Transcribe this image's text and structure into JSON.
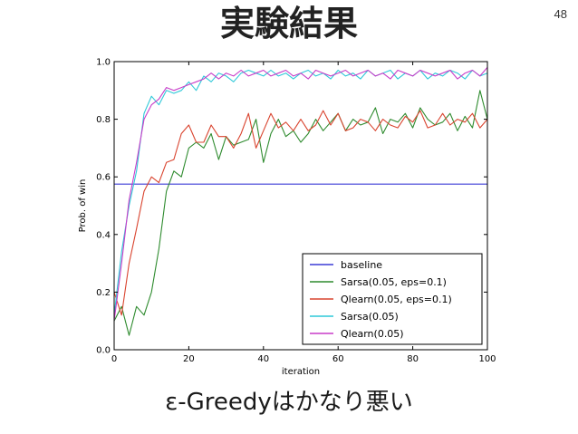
{
  "slide": {
    "title": "実験結果",
    "page_number": "48",
    "caption": "ε-Greedyはかなり悪い"
  },
  "chart_data": {
    "type": "line",
    "title": "",
    "xlabel": "iteration",
    "ylabel": "Prob. of win",
    "xlim": [
      0,
      100
    ],
    "ylim": [
      0.0,
      1.0
    ],
    "xticks": [
      "0",
      "20",
      "40",
      "60",
      "80",
      "100"
    ],
    "yticks": [
      "0.0",
      "0.2",
      "0.4",
      "0.6",
      "0.8",
      "1.0"
    ],
    "grid": false,
    "legend_position": "lower-right",
    "series": [
      {
        "name": "baseline",
        "color": "#3b3bd6",
        "x": [
          0,
          100
        ],
        "y": [
          0.575,
          0.575
        ]
      },
      {
        "name": "Sarsa(0.05, eps=0.1)",
        "color": "#2e8b2e",
        "x": [
          0,
          2,
          4,
          6,
          8,
          10,
          12,
          14,
          16,
          18,
          20,
          22,
          24,
          26,
          28,
          30,
          32,
          34,
          36,
          38,
          40,
          42,
          44,
          46,
          48,
          50,
          52,
          54,
          56,
          58,
          60,
          62,
          64,
          66,
          68,
          70,
          72,
          74,
          76,
          78,
          80,
          82,
          84,
          86,
          88,
          90,
          92,
          94,
          96,
          98,
          100
        ],
        "y": [
          0.1,
          0.15,
          0.05,
          0.15,
          0.12,
          0.2,
          0.35,
          0.55,
          0.62,
          0.6,
          0.7,
          0.72,
          0.7,
          0.75,
          0.66,
          0.74,
          0.71,
          0.72,
          0.73,
          0.8,
          0.65,
          0.75,
          0.8,
          0.74,
          0.76,
          0.72,
          0.75,
          0.8,
          0.76,
          0.79,
          0.82,
          0.76,
          0.8,
          0.78,
          0.79,
          0.84,
          0.75,
          0.8,
          0.79,
          0.82,
          0.77,
          0.84,
          0.8,
          0.78,
          0.79,
          0.82,
          0.76,
          0.81,
          0.77,
          0.9,
          0.8
        ]
      },
      {
        "name": "Qlearn(0.05, eps=0.1)",
        "color": "#d9442f",
        "x": [
          0,
          2,
          4,
          6,
          8,
          10,
          12,
          14,
          16,
          18,
          20,
          22,
          24,
          26,
          28,
          30,
          32,
          34,
          36,
          38,
          40,
          42,
          44,
          46,
          48,
          50,
          52,
          54,
          56,
          58,
          60,
          62,
          64,
          66,
          68,
          70,
          72,
          74,
          76,
          78,
          80,
          82,
          84,
          86,
          88,
          90,
          92,
          94,
          96,
          98,
          100
        ],
        "y": [
          0.2,
          0.12,
          0.3,
          0.42,
          0.55,
          0.6,
          0.58,
          0.65,
          0.66,
          0.75,
          0.78,
          0.72,
          0.72,
          0.78,
          0.74,
          0.74,
          0.7,
          0.75,
          0.82,
          0.7,
          0.76,
          0.82,
          0.77,
          0.79,
          0.76,
          0.8,
          0.76,
          0.78,
          0.83,
          0.78,
          0.82,
          0.76,
          0.77,
          0.8,
          0.79,
          0.76,
          0.8,
          0.78,
          0.77,
          0.81,
          0.79,
          0.83,
          0.77,
          0.78,
          0.82,
          0.78,
          0.8,
          0.79,
          0.82,
          0.77,
          0.8
        ]
      },
      {
        "name": "Sarsa(0.05)",
        "color": "#2ec8d8",
        "x": [
          0,
          2,
          4,
          6,
          8,
          10,
          12,
          14,
          16,
          18,
          20,
          22,
          24,
          26,
          28,
          30,
          32,
          34,
          36,
          38,
          40,
          42,
          44,
          46,
          48,
          50,
          52,
          54,
          56,
          58,
          60,
          62,
          64,
          66,
          68,
          70,
          72,
          74,
          76,
          78,
          80,
          82,
          84,
          86,
          88,
          90,
          92,
          94,
          96,
          98,
          100
        ],
        "y": [
          0.12,
          0.34,
          0.5,
          0.62,
          0.82,
          0.88,
          0.85,
          0.9,
          0.89,
          0.9,
          0.93,
          0.9,
          0.95,
          0.93,
          0.96,
          0.95,
          0.93,
          0.96,
          0.97,
          0.96,
          0.95,
          0.97,
          0.95,
          0.96,
          0.94,
          0.96,
          0.97,
          0.95,
          0.96,
          0.94,
          0.97,
          0.95,
          0.96,
          0.94,
          0.97,
          0.95,
          0.96,
          0.97,
          0.94,
          0.96,
          0.95,
          0.97,
          0.94,
          0.96,
          0.95,
          0.97,
          0.96,
          0.94,
          0.97,
          0.95,
          0.96
        ]
      },
      {
        "name": "Qlearn(0.05)",
        "color": "#c83cc8",
        "x": [
          0,
          2,
          4,
          6,
          8,
          10,
          12,
          14,
          16,
          18,
          20,
          22,
          24,
          26,
          28,
          30,
          32,
          34,
          36,
          38,
          40,
          42,
          44,
          46,
          48,
          50,
          52,
          54,
          56,
          58,
          60,
          62,
          64,
          66,
          68,
          70,
          72,
          74,
          76,
          78,
          80,
          82,
          84,
          86,
          88,
          90,
          92,
          94,
          96,
          98,
          100
        ],
        "y": [
          0.1,
          0.3,
          0.52,
          0.65,
          0.8,
          0.85,
          0.87,
          0.91,
          0.9,
          0.91,
          0.92,
          0.93,
          0.94,
          0.96,
          0.94,
          0.96,
          0.95,
          0.97,
          0.95,
          0.96,
          0.97,
          0.95,
          0.96,
          0.97,
          0.95,
          0.96,
          0.94,
          0.97,
          0.96,
          0.95,
          0.96,
          0.97,
          0.95,
          0.96,
          0.97,
          0.95,
          0.96,
          0.94,
          0.97,
          0.96,
          0.95,
          0.97,
          0.96,
          0.95,
          0.96,
          0.97,
          0.94,
          0.96,
          0.97,
          0.95,
          0.98
        ]
      }
    ]
  }
}
